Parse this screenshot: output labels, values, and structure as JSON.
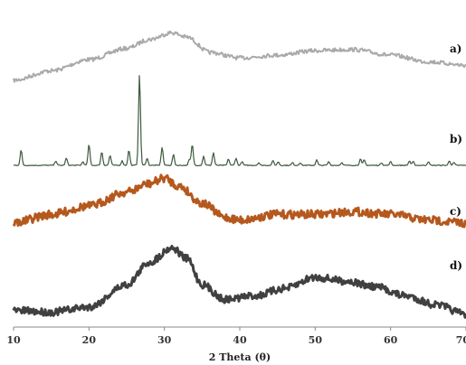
{
  "chart_data": {
    "type": "line",
    "xlabel": "2 Theta (θ)",
    "ylabel": "",
    "xlim": [
      10,
      70
    ],
    "xticks": [
      10,
      20,
      30,
      40,
      50,
      60,
      70
    ],
    "grid": false,
    "series": [
      {
        "name": "a)",
        "color": "#aaaaaa",
        "style": "broad hump",
        "points": [
          [
            10,
            0.05
          ],
          [
            15,
            0.22
          ],
          [
            20,
            0.42
          ],
          [
            25,
            0.62
          ],
          [
            28,
            0.78
          ],
          [
            31,
            0.9
          ],
          [
            33,
            0.82
          ],
          [
            36,
            0.55
          ],
          [
            40,
            0.45
          ],
          [
            45,
            0.5
          ],
          [
            50,
            0.58
          ],
          [
            55,
            0.6
          ],
          [
            60,
            0.5
          ],
          [
            65,
            0.38
          ],
          [
            70,
            0.32
          ]
        ]
      },
      {
        "name": "b)",
        "color": "#3d5a3d",
        "style": "sharp peaks",
        "baseline": 0.02,
        "peaks": [
          [
            11.0,
            0.17
          ],
          [
            15.6,
            0.05
          ],
          [
            17.0,
            0.08
          ],
          [
            19.2,
            0.04
          ],
          [
            20.0,
            0.23
          ],
          [
            21.7,
            0.15
          ],
          [
            22.8,
            0.11
          ],
          [
            24.4,
            0.05
          ],
          [
            25.3,
            0.17
          ],
          [
            26.7,
            1.0
          ],
          [
            27.7,
            0.08
          ],
          [
            29.7,
            0.2
          ],
          [
            31.2,
            0.12
          ],
          [
            33.3,
            0.06
          ],
          [
            33.7,
            0.23
          ],
          [
            35.2,
            0.1
          ],
          [
            36.5,
            0.14
          ],
          [
            38.5,
            0.07
          ],
          [
            39.5,
            0.08
          ],
          [
            40.3,
            0.04
          ],
          [
            42.5,
            0.03
          ],
          [
            44.4,
            0.05
          ],
          [
            45.1,
            0.04
          ],
          [
            47.0,
            0.03
          ],
          [
            48.0,
            0.03
          ],
          [
            50.2,
            0.06
          ],
          [
            51.8,
            0.04
          ],
          [
            53.5,
            0.03
          ],
          [
            56.0,
            0.07
          ],
          [
            56.5,
            0.06
          ],
          [
            58.8,
            0.03
          ],
          [
            60.0,
            0.04
          ],
          [
            62.5,
            0.05
          ],
          [
            63.0,
            0.04
          ],
          [
            65.0,
            0.04
          ],
          [
            67.8,
            0.05
          ],
          [
            68.4,
            0.03
          ]
        ]
      },
      {
        "name": "c)",
        "color": "#b5581d",
        "style": "broad hump",
        "points": [
          [
            10,
            0.15
          ],
          [
            15,
            0.3
          ],
          [
            20,
            0.45
          ],
          [
            25,
            0.7
          ],
          [
            28,
            0.85
          ],
          [
            30,
            0.95
          ],
          [
            32,
            0.8
          ],
          [
            35,
            0.5
          ],
          [
            38,
            0.25
          ],
          [
            40,
            0.2
          ],
          [
            45,
            0.3
          ],
          [
            50,
            0.3
          ],
          [
            55,
            0.35
          ],
          [
            60,
            0.3
          ],
          [
            65,
            0.2
          ],
          [
            70,
            0.15
          ]
        ]
      },
      {
        "name": "d)",
        "color": "#404040",
        "style": "broad hump",
        "points": [
          [
            10,
            0.1
          ],
          [
            15,
            0.08
          ],
          [
            20,
            0.15
          ],
          [
            25,
            0.45
          ],
          [
            28,
            0.75
          ],
          [
            31,
            0.95
          ],
          [
            33,
            0.8
          ],
          [
            35,
            0.45
          ],
          [
            38,
            0.25
          ],
          [
            42,
            0.3
          ],
          [
            46,
            0.4
          ],
          [
            50,
            0.55
          ],
          [
            54,
            0.5
          ],
          [
            58,
            0.42
          ],
          [
            62,
            0.3
          ],
          [
            66,
            0.18
          ],
          [
            70,
            0.05
          ]
        ]
      }
    ]
  }
}
